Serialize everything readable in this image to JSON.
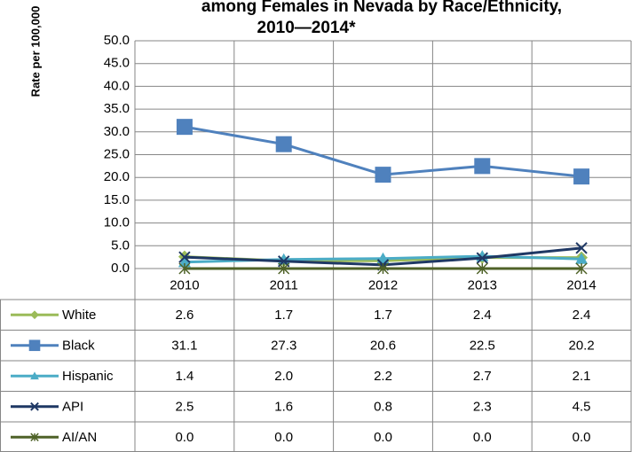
{
  "chart_data": {
    "type": "line",
    "title": [
      "among Females in Nevada by Race/Ethnicity,",
      "2010—2014*"
    ],
    "y_label": "Rate per 100,000",
    "categories": [
      "2010",
      "2011",
      "2012",
      "2013",
      "2014"
    ],
    "ylim": [
      0,
      50
    ],
    "yticks": [
      {
        "value": 0,
        "label": "0.0"
      },
      {
        "value": 5,
        "label": "5.0"
      },
      {
        "value": 10,
        "label": "10.0"
      },
      {
        "value": 15,
        "label": "15.0"
      },
      {
        "value": 20,
        "label": "20.0"
      },
      {
        "value": 25,
        "label": "25.0"
      },
      {
        "value": 30,
        "label": "30.0"
      },
      {
        "value": 35,
        "label": "35.0"
      },
      {
        "value": 40,
        "label": "40.0"
      },
      {
        "value": 45,
        "label": "45.0"
      },
      {
        "value": 50,
        "label": "50.0"
      }
    ],
    "grid": true,
    "series": [
      {
        "name": "White",
        "color": "#9bbb59",
        "marker": "diamond",
        "values": [
          2.6,
          1.7,
          1.7,
          2.4,
          2.4
        ],
        "value_labels": [
          "2.6",
          "1.7",
          "1.7",
          "2.4",
          "2.4"
        ]
      },
      {
        "name": "Black",
        "color": "#4f81bd",
        "marker": "square",
        "values": [
          31.1,
          27.3,
          20.6,
          22.5,
          20.2
        ],
        "value_labels": [
          "31.1",
          "27.3",
          "20.6",
          "22.5",
          "20.2"
        ]
      },
      {
        "name": "Hispanic",
        "color": "#4bacc6",
        "marker": "triangle",
        "values": [
          1.4,
          2.0,
          2.2,
          2.7,
          2.1
        ],
        "value_labels": [
          "1.4",
          "2.0",
          "2.2",
          "2.7",
          "2.1"
        ]
      },
      {
        "name": "API",
        "color": "#1f3864",
        "marker": "x",
        "values": [
          2.5,
          1.6,
          0.8,
          2.3,
          4.5
        ],
        "value_labels": [
          "2.5",
          "1.6",
          "0.8",
          "2.3",
          "4.5"
        ]
      },
      {
        "name": "AI/AN",
        "color": "#4f6228",
        "marker": "star",
        "values": [
          0.0,
          0.0,
          0.0,
          0.0,
          0.0
        ],
        "value_labels": [
          "0.0",
          "0.0",
          "0.0",
          "0.0",
          "0.0"
        ]
      }
    ]
  }
}
